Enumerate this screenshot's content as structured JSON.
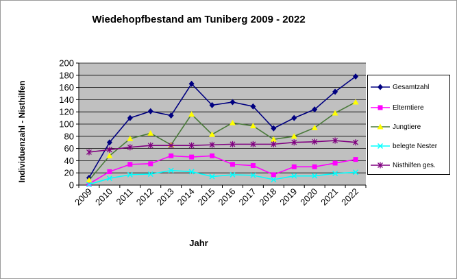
{
  "chart_data": {
    "type": "line",
    "title": "Wiedehopfbestand am Tuniberg 2009 - 2022",
    "xlabel": "Jahr",
    "ylabel": "Individuenzahl - Nisthilfen",
    "categories": [
      "2009",
      "2010",
      "2011",
      "2012",
      "2013",
      "2014",
      "2015",
      "2016",
      "2017",
      "2018",
      "2019",
      "2020",
      "2021",
      "2022"
    ],
    "ylim": [
      0,
      200
    ],
    "yticks": [
      0,
      20,
      40,
      60,
      80,
      100,
      120,
      140,
      160,
      180,
      200
    ],
    "grid": true,
    "legend_position": "right",
    "series": [
      {
        "name": "Gesamtzahl",
        "color": "#000080",
        "marker": "diamond",
        "values": [
          12,
          70,
          110,
          121,
          114,
          166,
          131,
          136,
          129,
          93,
          110,
          124,
          153,
          178
        ]
      },
      {
        "name": "Elterntiere",
        "color": "#ff00ff",
        "marker": "square",
        "values": [
          2,
          22,
          34,
          35,
          48,
          46,
          48,
          34,
          32,
          17,
          30,
          30,
          36,
          42
        ]
      },
      {
        "name": "Jungtiere",
        "color": "#4a7a3a",
        "marker": "triangle",
        "marker_color": "#ffff00",
        "values": [
          8,
          48,
          76,
          85,
          66,
          116,
          83,
          102,
          97,
          75,
          80,
          94,
          118,
          136
        ]
      },
      {
        "name": "belegte Nester",
        "color": "#00ffff",
        "marker": "x",
        "values": [
          1,
          11,
          17,
          18,
          24,
          22,
          14,
          17,
          16,
          9,
          15,
          15,
          19,
          21
        ]
      },
      {
        "name": "Nisthilfen ges.",
        "color": "#800080",
        "marker": "star",
        "values": [
          54,
          58,
          62,
          65,
          65,
          65,
          66,
          67,
          67,
          67,
          70,
          71,
          73,
          70
        ]
      }
    ]
  }
}
